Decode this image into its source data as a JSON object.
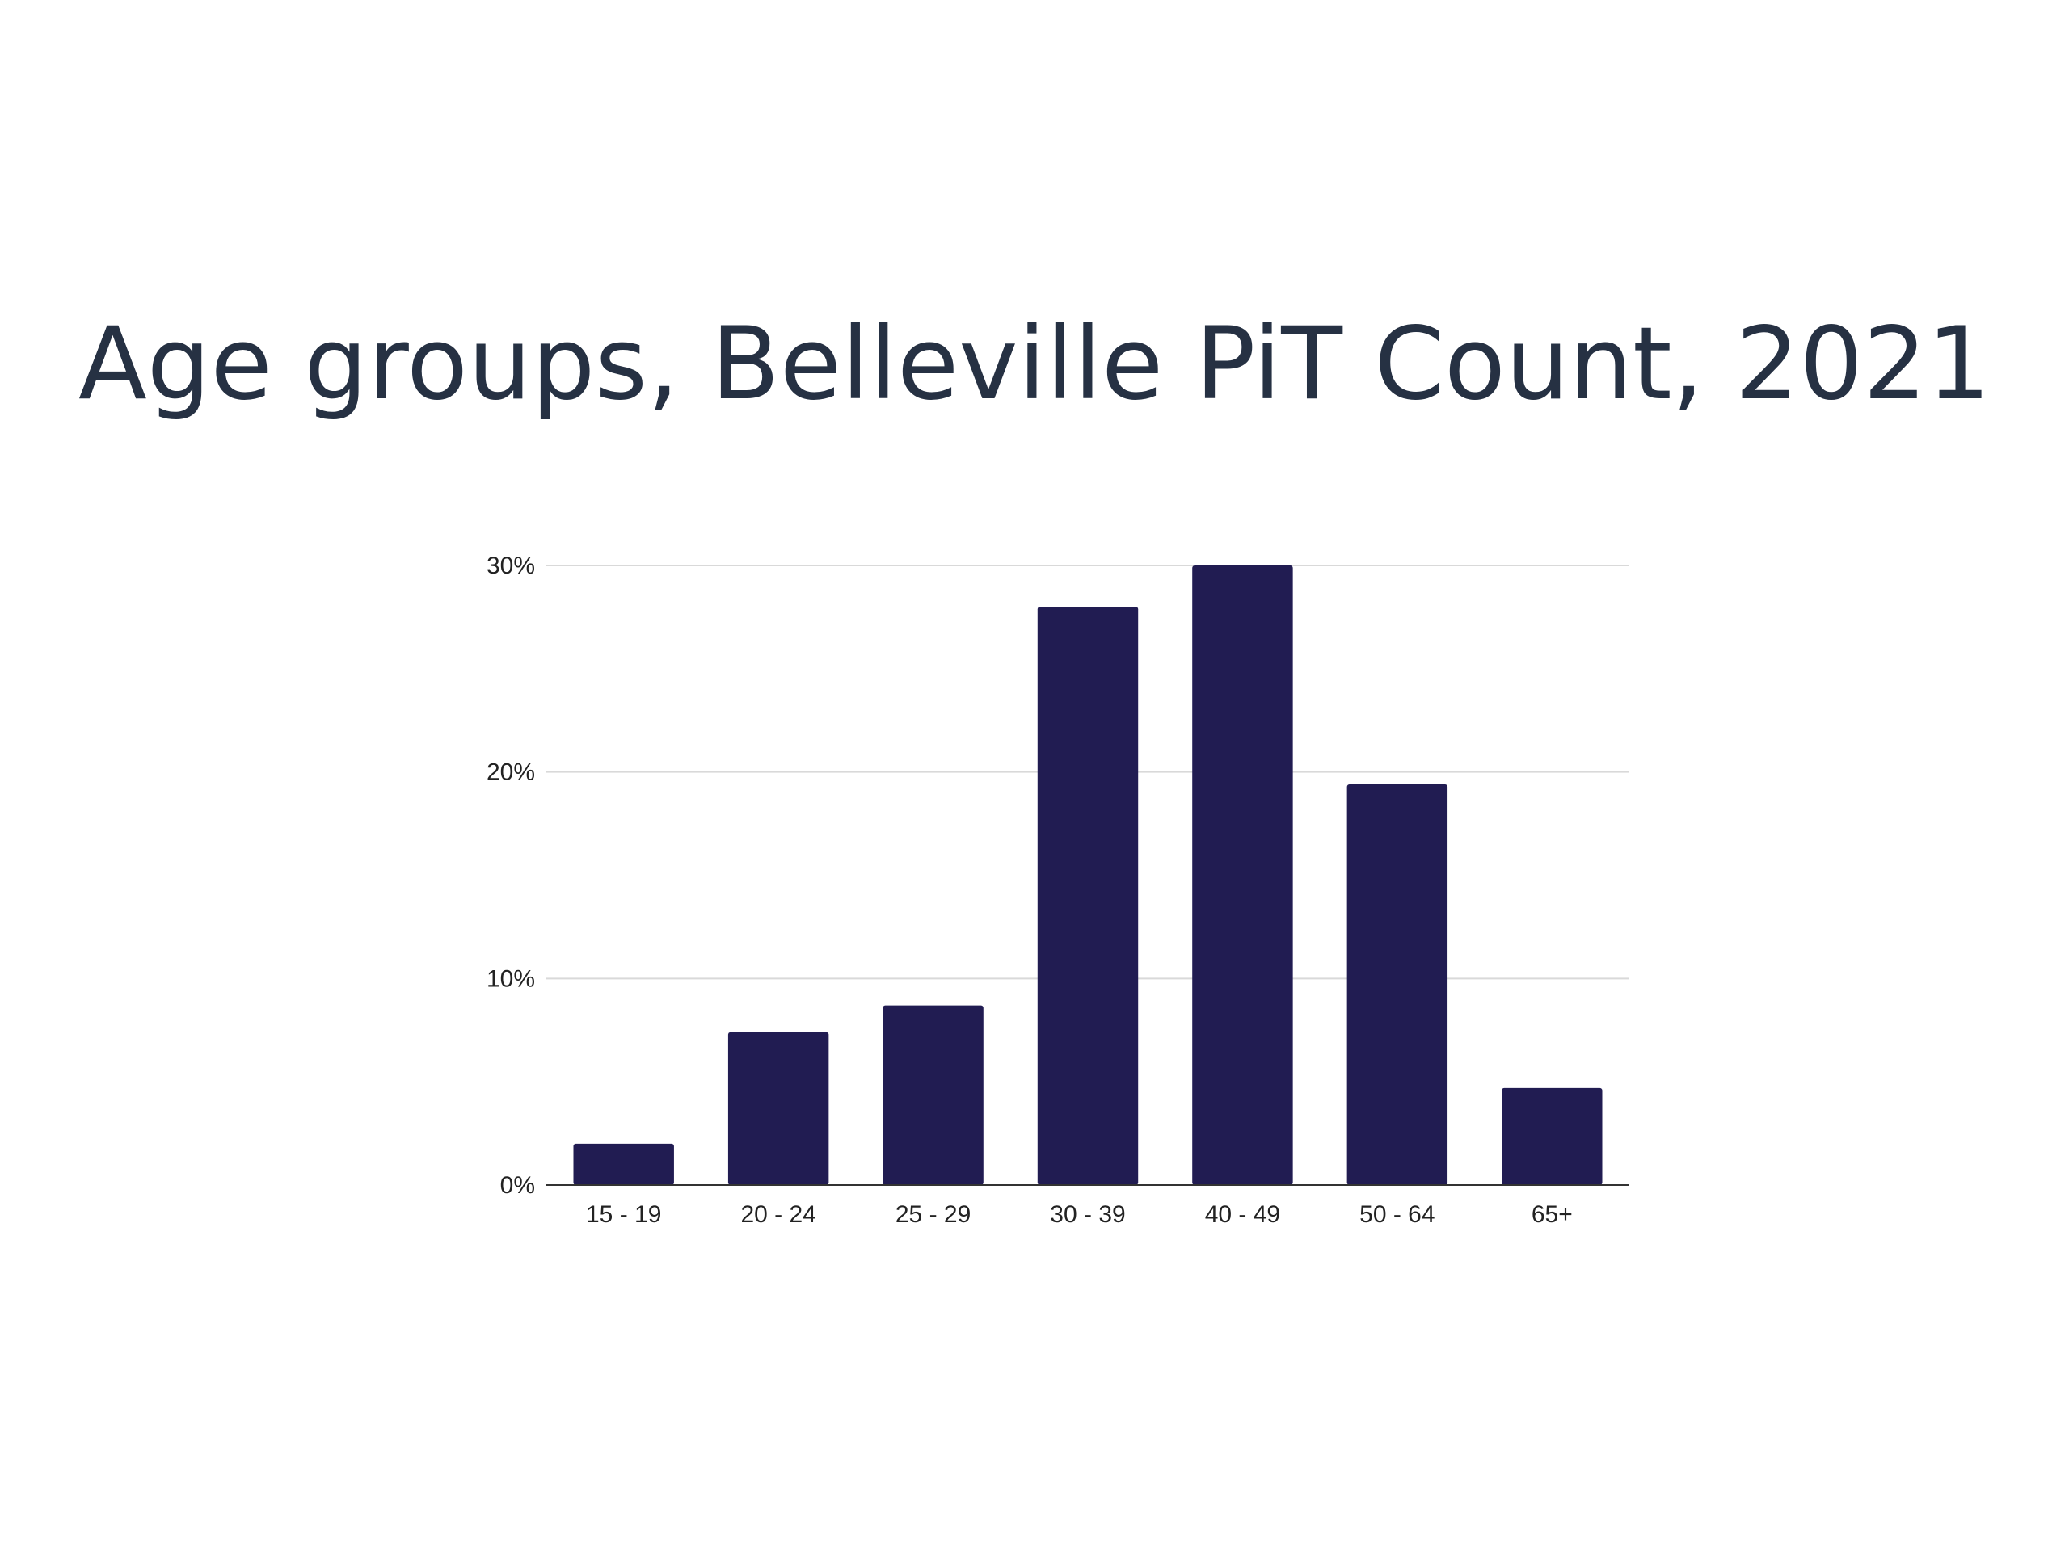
{
  "slide": {
    "title": "Age groups, Belleville PiT Count, 2021"
  },
  "chart_data": {
    "type": "bar",
    "categories": [
      "15 - 19",
      "20 - 24",
      "25 - 29",
      "30 - 39",
      "40 - 49",
      "50 - 64",
      "65+"
    ],
    "values": [
      2.0,
      7.4,
      8.7,
      28.0,
      30.0,
      19.4,
      4.7
    ],
    "value_unit": "%",
    "ylim": [
      0,
      30
    ],
    "yticks": [
      0,
      10,
      20,
      30
    ],
    "ytick_labels": [
      "0%",
      "10%",
      "20%",
      "30%"
    ],
    "grid": true,
    "legend": "none",
    "colors": {
      "bar": "#211c52",
      "gridline": "#d9d9d9",
      "axis": "#333333",
      "title": "#263143"
    }
  }
}
